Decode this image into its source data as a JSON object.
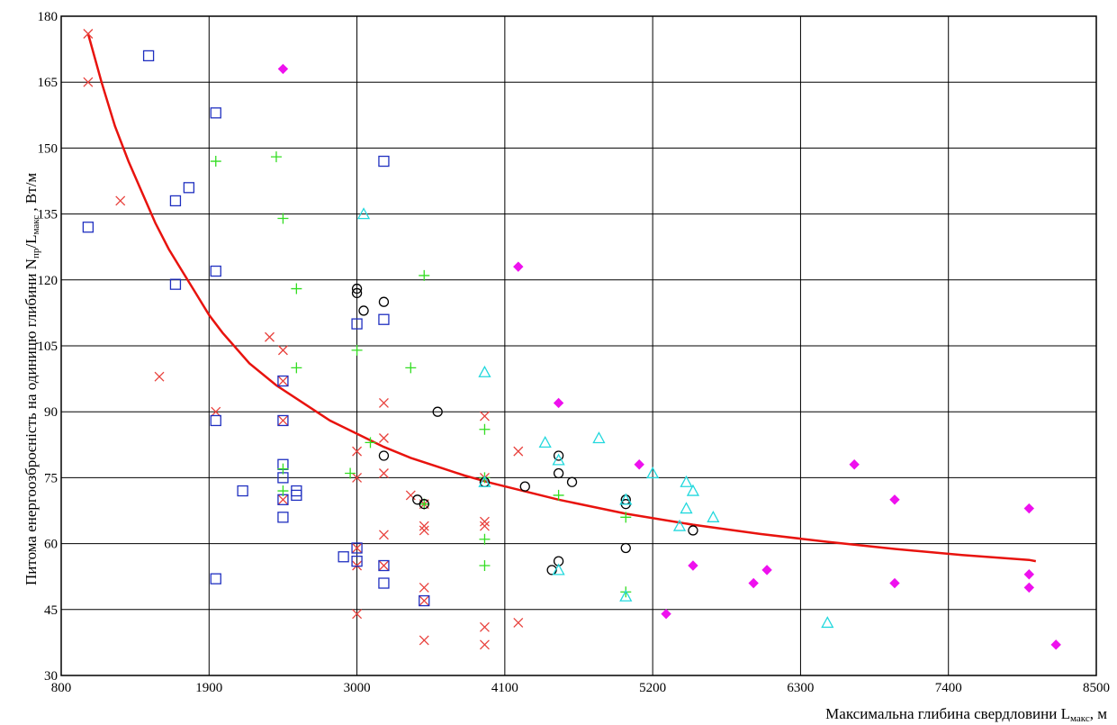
{
  "chart_data": {
    "type": "scatter",
    "xlabel_main": "Максимальна глибина свердловини L",
    "xlabel_sub": "макс",
    "xlabel_unit": ", м",
    "ylabel_main": "Питома енергоозброєність на одиницю глибини N",
    "ylabel_sub1": "пр",
    "ylabel_mid": "/L",
    "ylabel_sub2": "макс",
    "ylabel_unit": " , Вт/м",
    "xlim": [
      800,
      8500
    ],
    "ylim": [
      30,
      180
    ],
    "x_ticks": [
      800,
      1900,
      3000,
      4100,
      5200,
      6300,
      7400,
      8500
    ],
    "y_ticks": [
      30,
      45,
      60,
      75,
      90,
      105,
      120,
      135,
      150,
      165,
      180
    ],
    "grid": true,
    "series": [
      {
        "marker": "cross",
        "color": "#e8413c",
        "points": [
          [
            1000,
            176
          ],
          [
            1000,
            165
          ],
          [
            1240,
            138
          ],
          [
            1530,
            98
          ],
          [
            1950,
            90
          ],
          [
            2350,
            107
          ],
          [
            2450,
            104
          ],
          [
            2450,
            97
          ],
          [
            2450,
            88
          ],
          [
            2450,
            70
          ],
          [
            3000,
            81
          ],
          [
            3000,
            75
          ],
          [
            3000,
            59
          ],
          [
            3000,
            55
          ],
          [
            3000,
            44
          ],
          [
            3200,
            92
          ],
          [
            3200,
            84
          ],
          [
            3200,
            76
          ],
          [
            3200,
            62
          ],
          [
            3200,
            55
          ],
          [
            3400,
            71
          ],
          [
            3500,
            69
          ],
          [
            3500,
            64
          ],
          [
            3500,
            63
          ],
          [
            3500,
            50
          ],
          [
            3500,
            38
          ],
          [
            3500,
            47
          ],
          [
            3950,
            89
          ],
          [
            3950,
            75
          ],
          [
            3950,
            65
          ],
          [
            3950,
            64
          ],
          [
            3950,
            41
          ],
          [
            3950,
            37
          ],
          [
            4200,
            81
          ],
          [
            4200,
            42
          ]
        ]
      },
      {
        "marker": "square",
        "color": "#1f2fc0",
        "points": [
          [
            1000,
            132
          ],
          [
            1450,
            171
          ],
          [
            1650,
            119
          ],
          [
            1650,
            138
          ],
          [
            1750,
            141
          ],
          [
            1950,
            158
          ],
          [
            1950,
            122
          ],
          [
            1950,
            88
          ],
          [
            1950,
            52
          ],
          [
            2150,
            72
          ],
          [
            2450,
            97
          ],
          [
            2450,
            88
          ],
          [
            2450,
            78
          ],
          [
            2450,
            75
          ],
          [
            2450,
            70
          ],
          [
            2450,
            66
          ],
          [
            2550,
            72
          ],
          [
            2550,
            71
          ],
          [
            2900,
            57
          ],
          [
            3000,
            110
          ],
          [
            3000,
            59
          ],
          [
            3000,
            56
          ],
          [
            3200,
            147
          ],
          [
            3200,
            111
          ],
          [
            3200,
            55
          ],
          [
            3200,
            51
          ],
          [
            3500,
            47
          ]
        ]
      },
      {
        "marker": "plus",
        "color": "#33dd22",
        "points": [
          [
            1950,
            147
          ],
          [
            2400,
            148
          ],
          [
            2450,
            134
          ],
          [
            2450,
            77
          ],
          [
            2450,
            72
          ],
          [
            2550,
            118
          ],
          [
            2550,
            100
          ],
          [
            2950,
            76
          ],
          [
            3000,
            104
          ],
          [
            3100,
            83
          ],
          [
            3400,
            100
          ],
          [
            3500,
            121
          ],
          [
            3500,
            69
          ],
          [
            3950,
            86
          ],
          [
            3950,
            75
          ],
          [
            3950,
            61
          ],
          [
            3950,
            55
          ],
          [
            4500,
            71
          ],
          [
            5000,
            66
          ],
          [
            5000,
            49
          ]
        ]
      },
      {
        "marker": "circle",
        "color": "#000000",
        "points": [
          [
            3000,
            118
          ],
          [
            3000,
            117
          ],
          [
            3050,
            113
          ],
          [
            3200,
            115
          ],
          [
            3200,
            80
          ],
          [
            3450,
            70
          ],
          [
            3500,
            69
          ],
          [
            3600,
            90
          ],
          [
            3950,
            74
          ],
          [
            4250,
            73
          ],
          [
            4450,
            54
          ],
          [
            4500,
            80
          ],
          [
            4500,
            76
          ],
          [
            4500,
            56
          ],
          [
            4600,
            74
          ],
          [
            5000,
            70
          ],
          [
            5000,
            69
          ],
          [
            5000,
            59
          ],
          [
            5500,
            63
          ]
        ]
      },
      {
        "marker": "triangle",
        "color": "#22d8dd",
        "points": [
          [
            3050,
            135
          ],
          [
            3950,
            99
          ],
          [
            3950,
            74
          ],
          [
            4400,
            83
          ],
          [
            4500,
            79
          ],
          [
            4500,
            54
          ],
          [
            4800,
            84
          ],
          [
            5000,
            70
          ],
          [
            5000,
            48
          ],
          [
            5200,
            76
          ],
          [
            5400,
            64
          ],
          [
            5450,
            74
          ],
          [
            5450,
            68
          ],
          [
            5500,
            72
          ],
          [
            5650,
            66
          ],
          [
            6500,
            42
          ]
        ]
      },
      {
        "marker": "diamond",
        "color": "#ee11ee",
        "points": [
          [
            2450,
            168
          ],
          [
            4200,
            123
          ],
          [
            4500,
            92
          ],
          [
            5100,
            78
          ],
          [
            5300,
            44
          ],
          [
            5500,
            55
          ],
          [
            5950,
            51
          ],
          [
            6050,
            54
          ],
          [
            6700,
            78
          ],
          [
            7000,
            70
          ],
          [
            7000,
            51
          ],
          [
            8000,
            68
          ],
          [
            8000,
            53
          ],
          [
            8000,
            50
          ],
          [
            8200,
            37
          ]
        ]
      }
    ],
    "fit_curve": {
      "color": "#e8130e",
      "points": [
        [
          1000,
          176
        ],
        [
          1100,
          165
        ],
        [
          1200,
          155
        ],
        [
          1300,
          147
        ],
        [
          1400,
          140
        ],
        [
          1500,
          133
        ],
        [
          1600,
          127
        ],
        [
          1700,
          122
        ],
        [
          1800,
          117
        ],
        [
          1900,
          112
        ],
        [
          2000,
          108
        ],
        [
          2200,
          101
        ],
        [
          2400,
          96
        ],
        [
          2600,
          92
        ],
        [
          2800,
          88
        ],
        [
          3000,
          85
        ],
        [
          3200,
          82
        ],
        [
          3400,
          79.5
        ],
        [
          3600,
          77.5
        ],
        [
          3800,
          75.5
        ],
        [
          4000,
          73.8
        ],
        [
          4500,
          70
        ],
        [
          5000,
          66.8
        ],
        [
          5500,
          64.3
        ],
        [
          6000,
          62.2
        ],
        [
          6500,
          60.4
        ],
        [
          7000,
          58.8
        ],
        [
          7500,
          57.4
        ],
        [
          8000,
          56.3
        ],
        [
          8050,
          56
        ]
      ]
    }
  }
}
